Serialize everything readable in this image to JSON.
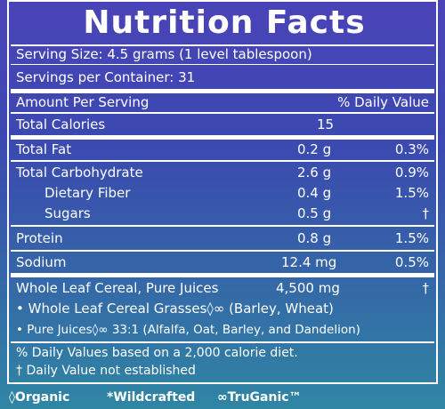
{
  "panel": {
    "title": "Nutrition Facts",
    "serving_size": "Serving Size: 4.5 grams (1 level tablespoon)",
    "servings_per_container": "Servings per Container: 31",
    "header_left": "Amount Per Serving",
    "header_right": "% Daily Value",
    "rows": [
      {
        "label": "Total Calories",
        "amount": "15",
        "dv": ""
      },
      {
        "label": "Total Fat",
        "amount": "0.2 g",
        "dv": "0.3%"
      },
      {
        "label": "Total Carbohydrate",
        "amount": "2.6 g",
        "dv": "0.9%"
      },
      {
        "label": "Dietary Fiber",
        "amount": "0.4 g",
        "dv": "1.5%"
      },
      {
        "label": "Sugars",
        "amount": "0.5 g",
        "dv": "†"
      },
      {
        "label": "Protein",
        "amount": "0.8 g",
        "dv": "1.5%"
      },
      {
        "label": "Sodium",
        "amount": "12.4 mg",
        "dv": "0.5%"
      }
    ],
    "cereal_line": "Whole Leaf Cereal, Pure Juices",
    "cereal_amount": "4,500 mg",
    "cereal_dv": "†",
    "grasses_line": "• Whole Leaf Cereal Grasses◊∞ (Barley, Wheat)",
    "juices_line": "• Pure Juices◊∞ 33:1 (Alfalfa, Oat, Barley, and Dandelion)",
    "footnote1": "% Daily Values based on a 2,000 calorie diet.",
    "footnote2": "† Daily Value not established"
  },
  "legend": {
    "organic": "◊Organic",
    "wildcrafted": "*Wildcrafted",
    "truganic": "∞TruGanic™"
  }
}
